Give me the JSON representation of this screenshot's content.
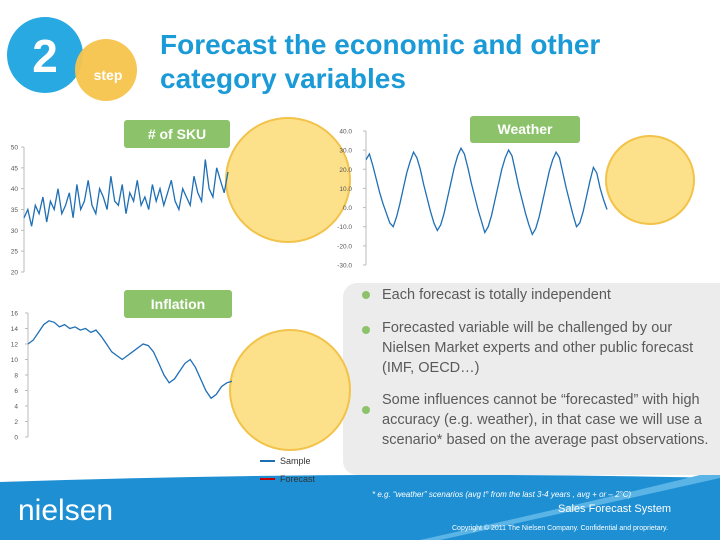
{
  "header": {
    "number": "2",
    "step": "step",
    "title": [
      "Forecast the economic and other",
      "category variables"
    ]
  },
  "charts": [
    {
      "type": "line",
      "label": "# of SKU",
      "color": "#1f6fb5",
      "ylim": [
        20,
        50
      ],
      "yticks": [
        20,
        25,
        30,
        35,
        40,
        45,
        50
      ],
      "values": [
        33,
        35,
        31,
        36,
        34,
        38,
        32,
        37,
        35,
        40,
        34,
        36,
        39,
        33,
        41,
        35,
        37,
        42,
        36,
        34,
        40,
        38,
        35,
        43,
        37,
        36,
        41,
        34,
        39,
        37,
        42,
        36,
        38,
        35,
        41,
        37,
        40,
        36,
        39,
        42,
        37,
        35,
        40,
        38,
        36,
        43,
        39,
        37,
        47,
        40,
        38,
        45,
        42,
        39,
        44
      ]
    },
    {
      "type": "line",
      "label": "Weather",
      "color": "#1f6fb5",
      "ylim": [
        -30,
        40
      ],
      "yticks": [
        {
          "value": -30,
          "label": "-30.0"
        },
        {
          "value": -20,
          "label": "-20.0"
        },
        {
          "value": -10,
          "label": "-10.0"
        },
        {
          "value": 0,
          "label": "0.0"
        },
        {
          "value": 10,
          "label": "10.0"
        },
        {
          "value": 20,
          "label": "20.0"
        },
        {
          "value": 30,
          "label": "30.0"
        },
        {
          "value": 40,
          "label": "40.0"
        }
      ],
      "values": [
        25,
        28,
        22,
        15,
        8,
        2,
        -3,
        -8,
        -10,
        -5,
        2,
        10,
        18,
        24,
        29,
        26,
        20,
        12,
        5,
        -2,
        -8,
        -12,
        -9,
        -3,
        5,
        13,
        21,
        27,
        31,
        28,
        21,
        13,
        6,
        -1,
        -7,
        -13,
        -10,
        -4,
        4,
        12,
        20,
        26,
        30,
        27,
        19,
        11,
        4,
        -3,
        -9,
        -14,
        -11,
        -5,
        3,
        11,
        19,
        25,
        29,
        26,
        18,
        10,
        3,
        -4,
        -10,
        -8,
        -2,
        6,
        14,
        21,
        18,
        10,
        4,
        -1
      ]
    },
    {
      "type": "line",
      "label": "Inflation",
      "color": "#1f6fb5",
      "ylim": [
        0,
        16
      ],
      "yticks": [
        0,
        2,
        4,
        6,
        8,
        10,
        12,
        14,
        16
      ],
      "values": [
        12,
        12.5,
        13.5,
        14.5,
        15,
        14.8,
        14.2,
        14.5,
        14,
        14.2,
        13.8,
        14,
        13.5,
        13.8,
        13,
        12,
        11,
        10.5,
        10,
        10.5,
        11,
        11.5,
        12,
        11.8,
        11,
        9.5,
        8,
        7,
        7.5,
        8.5,
        9.5,
        10,
        9,
        7.5,
        6,
        5,
        5.5,
        6.5,
        7,
        7.2
      ]
    }
  ],
  "legend": [
    {
      "name": "Sample",
      "color": "#1f6fb5"
    },
    {
      "name": "Forecast",
      "color": "#c00000"
    }
  ],
  "bullets": [
    "Each forecast is totally independent",
    "Forecasted variable will be challenged by our Nielsen Market experts and other public forecast (IMF, OECD…)",
    "Some influences cannot be “forecasted” with high accuracy (e.g. weather), in that case we will use a scenario* based on the average past observations."
  ],
  "footer": {
    "footnote": "* e.g. “weather” scenarios (avg t° from the last 3-4 years , avg + or – 2°C)",
    "logo": "nielsen",
    "system": "Sales Forecast System",
    "copyright": "Copyright © 2011 The Nielsen Company. Confidential and proprietary."
  }
}
